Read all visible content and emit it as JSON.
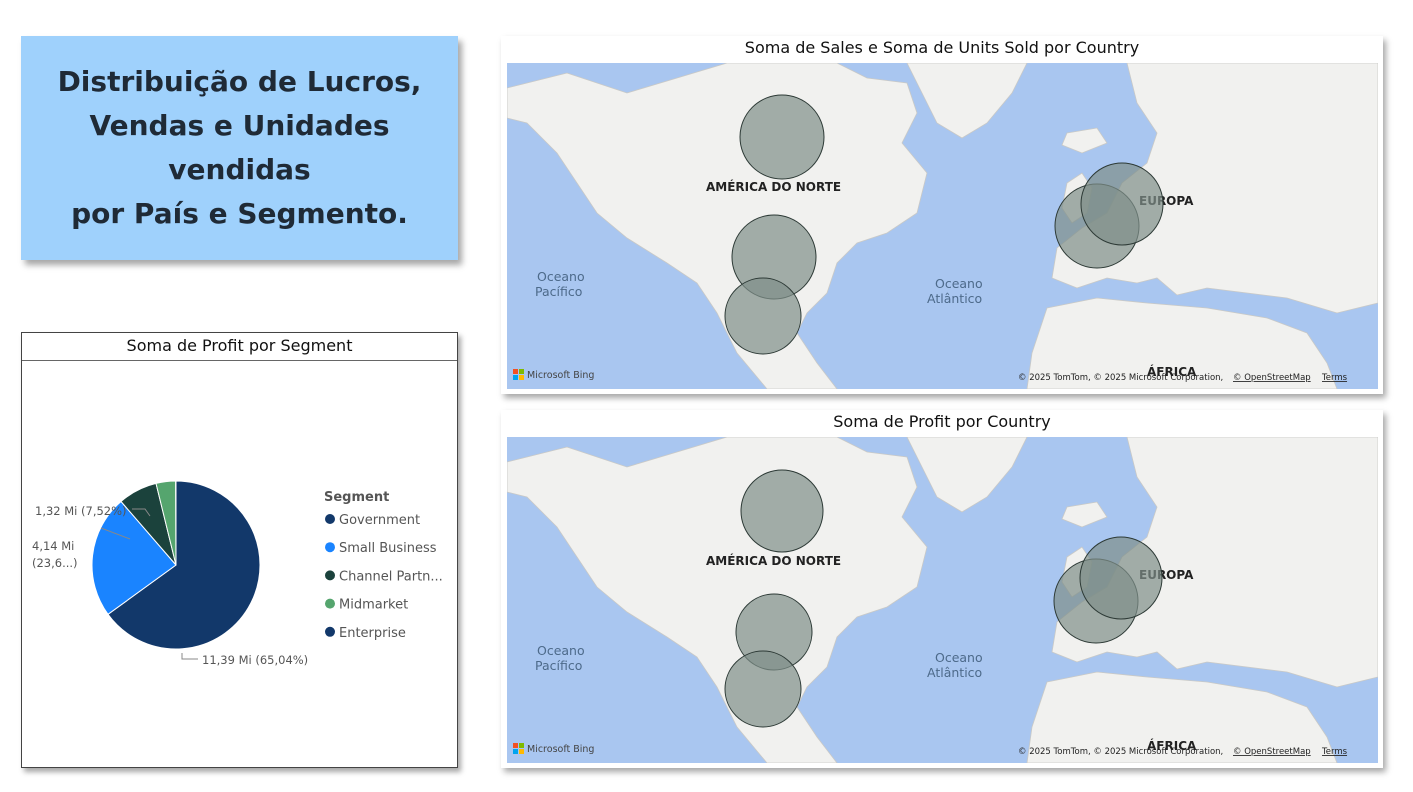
{
  "title_card": {
    "lines": [
      "Distribuição de Lucros,",
      "Vendas e Unidades vendidas",
      "por País e Segmento."
    ]
  },
  "pie_visual": {
    "title": "Soma de Profit por Segment",
    "legend_title": "Segment",
    "data_labels": {
      "government": "11,39 Mi (65,04%)",
      "small_business_line1": "4,14 Mi",
      "small_business_line2": "(23,6...)",
      "channel_partners": "1,32 Mi (7,52%)"
    }
  },
  "chart_data": {
    "type": "pie",
    "title": "Soma de Profit por Segment",
    "legend_title": "Segment",
    "legend_position": "right",
    "slices": [
      {
        "label": "Government",
        "legend_text": "Government",
        "value": 11.39,
        "percent": 65.04,
        "color": "#12386a"
      },
      {
        "label": "Small Business",
        "legend_text": "Small Business",
        "value": 4.14,
        "percent": 23.6,
        "color": "#1a84ff"
      },
      {
        "label": "Channel Partners",
        "legend_text": "Channel Partn...",
        "value": 1.32,
        "percent": 7.52,
        "color": "#1b423c"
      },
      {
        "label": "Midmarket",
        "legend_text": "Midmarket",
        "value": 0.66,
        "percent": 3.78,
        "color": "#55a56e"
      },
      {
        "label": "Enterprise",
        "legend_text": "Enterprise",
        "value": 0.01,
        "percent": 0.06,
        "color": "#12386a"
      }
    ]
  },
  "map_visuals": [
    {
      "title": "Soma de Sales e Soma de Units Sold por Country",
      "labels": {
        "north_america": "AMÉRICA DO NORTE",
        "europe": "EUROPA",
        "africa": "ÁFRICA",
        "pacific_1": "Oceano",
        "pacific_2": "Pacífico",
        "atlantic_1": "Oceano",
        "atlantic_2": "Atlântico"
      },
      "attribution": "© 2025 TomTom, © 2025 Microsoft Corporation,",
      "osm_link": "© OpenStreetMap",
      "terms_link": "Terms",
      "bing_logo": "Microsoft Bing"
    },
    {
      "title": "Soma de Profit por Country",
      "labels": {
        "north_america": "AMÉRICA DO NORTE",
        "europe": "EUROPA",
        "africa": "ÁFRICA",
        "pacific_1": "Oceano",
        "pacific_2": "Pacífico",
        "atlantic_1": "Oceano",
        "atlantic_2": "Atlântico"
      },
      "attribution": "© 2025 TomTom, © 2025 Microsoft Corporation,",
      "osm_link": "© OpenStreetMap",
      "terms_link": "Terms",
      "bing_logo": "Microsoft Bing"
    }
  ],
  "colors": {
    "title_card_bg": "#9fd1fc",
    "map_water": "#a9c6f0",
    "map_land": "#f1f1ef",
    "bubble_fill": "#7f8f89"
  }
}
